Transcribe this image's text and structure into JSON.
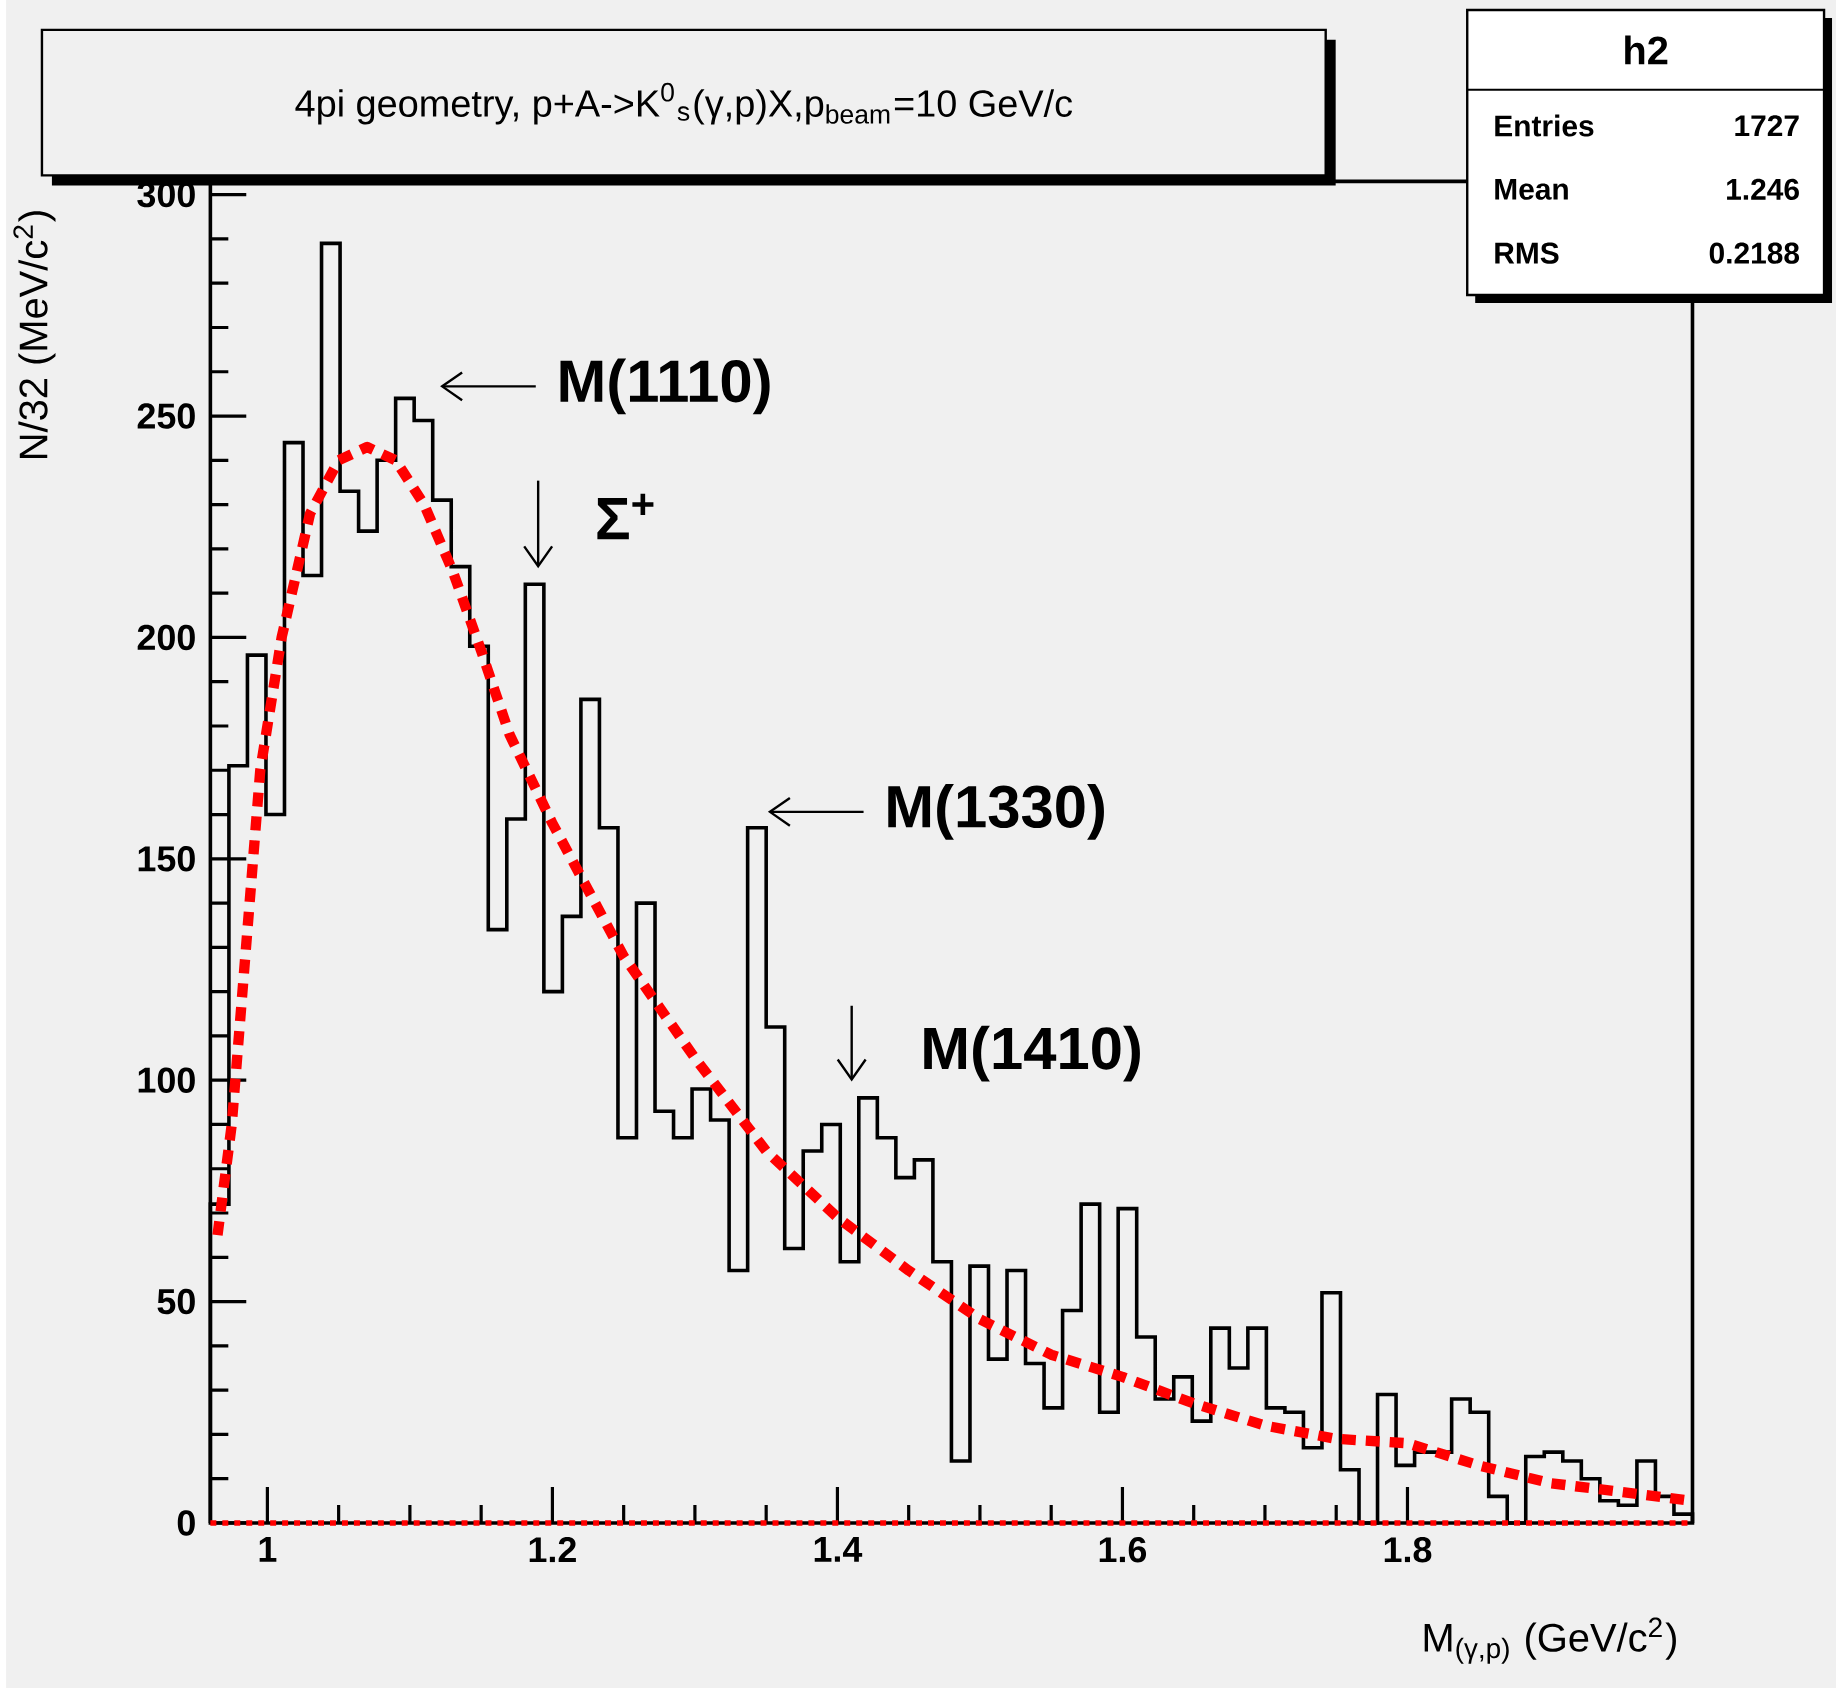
{
  "chart_data": {
    "type": "histogram",
    "title": "4pi geometry, p+A->K$^{0}$$_{s}$(γ,p)X,p$_{beam}$=10 GeV/c",
    "xlabel": "M$_{(γ,p)}$ (GeV/c$^{2}$)",
    "ylabel": "N/32 (MeV/c$^{2}$)",
    "bins": [
      0.96,
      0.973,
      0.986,
      0.999,
      1.012,
      1.025,
      1.038,
      1.051,
      1.064,
      1.077,
      1.09,
      1.103,
      1.116,
      1.129,
      1.142,
      1.155,
      1.168,
      1.181,
      1.194,
      1.207,
      1.22,
      1.233,
      1.246,
      1.259,
      1.272,
      1.285,
      1.298,
      1.311,
      1.324,
      1.337,
      1.35,
      1.363,
      1.376,
      1.389,
      1.402,
      1.415,
      1.428,
      1.441,
      1.454,
      1.467,
      1.48,
      1.493,
      1.506,
      1.519,
      1.532,
      1.545,
      1.558,
      1.571,
      1.584,
      1.597,
      1.61,
      1.623,
      1.636,
      1.649,
      1.662,
      1.675,
      1.688,
      1.701,
      1.714,
      1.727,
      1.74,
      1.753,
      1.766,
      1.779,
      1.792,
      1.805,
      1.818,
      1.831,
      1.844,
      1.857,
      1.87,
      1.883,
      1.896,
      1.909,
      1.922,
      1.935,
      1.948,
      1.961,
      1.974,
      1.987,
      2.0
    ],
    "values": [
      72,
      171,
      196,
      160,
      244,
      214,
      289,
      233,
      224,
      240,
      254,
      249,
      231,
      216,
      198,
      134,
      159,
      212,
      120,
      137,
      186,
      157,
      87,
      140,
      93,
      87,
      98,
      91,
      57,
      157,
      112,
      62,
      84,
      90,
      59,
      96,
      87,
      78,
      82,
      59,
      14,
      58,
      37,
      57,
      36,
      26,
      48,
      72,
      25,
      71,
      42,
      28,
      33,
      23,
      44,
      35,
      44,
      26,
      25,
      17,
      52,
      12,
      0,
      29,
      13,
      16,
      16,
      28,
      25,
      6,
      0,
      15,
      16,
      14,
      10,
      5,
      4,
      14,
      6,
      2
    ],
    "color": "#000000",
    "series": [
      {
        "type": "line",
        "color": "#ff0000",
        "line_style": "dashed",
        "x": [
          0.965,
          0.975,
          0.985,
          0.995,
          1.01,
          1.03,
          1.05,
          1.07,
          1.09,
          1.11,
          1.13,
          1.15,
          1.17,
          1.2,
          1.25,
          1.3,
          1.35,
          1.4,
          1.45,
          1.5,
          1.55,
          1.6,
          1.65,
          1.7,
          1.75,
          1.8,
          1.85,
          1.9,
          1.95,
          2.0
        ],
        "values": [
          65,
          90,
          130,
          170,
          200,
          228,
          240,
          243,
          240,
          230,
          215,
          197,
          178,
          158,
          128,
          105,
          84,
          69,
          57,
          46,
          38,
          33,
          27,
          22,
          19,
          18,
          13,
          9,
          7,
          5
        ]
      }
    ],
    "ref_lines": [
      {
        "axis": "y",
        "value": 0,
        "color": "#ff0000",
        "line_style": "dotted"
      }
    ],
    "xlim": [
      0.96,
      2.0
    ],
    "ylim": [
      0,
      303
    ],
    "xticks": [
      1,
      1.2,
      1.4,
      1.6,
      1.8
    ],
    "yticks": [
      0,
      50,
      100,
      150,
      200,
      250,
      300
    ],
    "annotations": [
      {
        "text": "M(1110)",
        "x": 1.11,
        "y": 254
      },
      {
        "text": "Σ$^{+}$",
        "x": 1.19,
        "y": 212
      },
      {
        "text": "M(1330)",
        "x": 1.34,
        "y": 157
      },
      {
        "text": "M(1410)",
        "x": 1.41,
        "y": 97
      },
      "h2",
      "Entries",
      "1727",
      "Mean",
      "1.246",
      "RMS",
      "0.2188"
    ]
  }
}
